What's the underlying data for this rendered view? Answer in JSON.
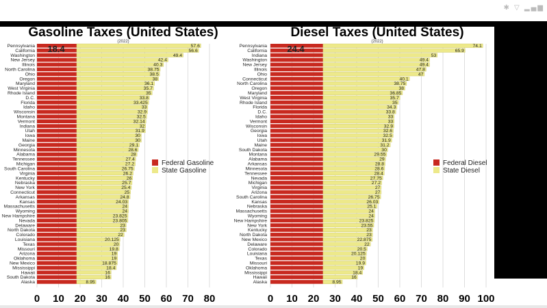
{
  "status_bar": {
    "icons": [
      "bluetooth-icon",
      "wifi-icon",
      "signal-icon"
    ]
  },
  "colors": {
    "federal": "#c8291f",
    "state": "#ede98a",
    "state_stroke": "#c9c46a",
    "grid": "#dddddd"
  },
  "chart_data": [
    {
      "type": "bar",
      "stacked": true,
      "orientation": "horizontal",
      "title": "Gasoline Taxes (United States)",
      "subtitle": "(2022)",
      "xlim": [
        0,
        80
      ],
      "xticks": [
        0,
        10,
        20,
        30,
        40,
        50,
        60,
        70,
        80
      ],
      "grid": true,
      "legend_position": "right",
      "federal_label": "18.4",
      "categories": [
        "Pennsylvania",
        "California",
        "Washington",
        "New Jersey",
        "Illinois",
        "North Carolina",
        "Ohio",
        "Oregon",
        "Maryland",
        "West Virginia",
        "Rhode Island",
        "D.C.",
        "Florida",
        "Idaho",
        "Wisconsin",
        "Montana",
        "Vermont",
        "Indiana",
        "Utah",
        "Iowa",
        "Maine",
        "Georgia",
        "Minnesota",
        "Alabama",
        "Tennessee",
        "Michigan",
        "South Carolina",
        "Virginia",
        "Kentucky",
        "Nebraska",
        "New York",
        "Connecticut",
        "Arkansas",
        "Kansas",
        "Massachusetts",
        "Wyoming",
        "New Hampshire",
        "Nevada",
        "Delaware",
        "North Dakota",
        "Colorado",
        "Louisiana",
        "Texas",
        "Missouri",
        "Arizona",
        "Oklahoma",
        "New Mexico",
        "Mississippi",
        "Hawaii",
        "South Dakota",
        "Alaska"
      ],
      "series": [
        {
          "name": "Federal Gasoline",
          "values": [
            18.4,
            18.4,
            18.4,
            18.4,
            18.4,
            18.4,
            18.4,
            18.4,
            18.4,
            18.4,
            18.4,
            18.4,
            18.4,
            18.4,
            18.4,
            18.4,
            18.4,
            18.4,
            18.4,
            18.4,
            18.4,
            18.4,
            18.4,
            18.4,
            18.4,
            18.4,
            18.4,
            18.4,
            18.4,
            18.4,
            18.4,
            18.4,
            18.4,
            18.4,
            18.4,
            18.4,
            18.4,
            18.4,
            18.4,
            18.4,
            18.4,
            18.4,
            18.4,
            18.4,
            18.4,
            18.4,
            18.4,
            18.4,
            18.4,
            18.4,
            18.4
          ]
        },
        {
          "name": "State Gasoline",
          "values": [
            57.6,
            56.6,
            49.4,
            42.4,
            40.3,
            38.75,
            38.5,
            38,
            36.1,
            35.7,
            35,
            33.8,
            33.425,
            33,
            32.9,
            32.5,
            32.14,
            32,
            31.9,
            30,
            30,
            29.1,
            28.6,
            28,
            27.4,
            27.2,
            26.75,
            26.2,
            26,
            25.7,
            25.4,
            25,
            24.8,
            24.03,
            24,
            24,
            23.825,
            23.805,
            23,
            23,
            22,
            20.125,
            20,
            19.8,
            19,
            19,
            18.875,
            18.4,
            16,
            16,
            8.95
          ]
        }
      ]
    },
    {
      "type": "bar",
      "stacked": true,
      "orientation": "horizontal",
      "title": "Diesel Taxes (United States)",
      "subtitle": "(2022)",
      "xlim": [
        0,
        100
      ],
      "xticks": [
        0,
        10,
        20,
        30,
        40,
        50,
        60,
        70,
        80,
        90,
        100
      ],
      "grid": true,
      "legend_position": "right",
      "federal_label": "24.4",
      "categories": [
        "Pennsylvania",
        "California",
        "Indiana",
        "Washington",
        "New Jersey",
        "Illinois",
        "Ohio",
        "Connecticut",
        "North Carolina",
        "Oregon",
        "Maryland",
        "West Virginia",
        "Rhode Island",
        "Florida",
        "D.C.",
        "Idaho",
        "Vermont",
        "Wisconsin",
        "Georgia",
        "Iowa",
        "Utah",
        "Maine",
        "South Dakota",
        "Montana",
        "Alabama",
        "Arkansas",
        "Minnesota",
        "Tennessee",
        "Nevada",
        "Michigan",
        "Virginia",
        "Arizona",
        "South Carolina",
        "Kansas",
        "Nebraska",
        "Massachusetts",
        "Wyoming",
        "New Hampshire",
        "New York",
        "Kentucky",
        "North Dakota",
        "New Mexico",
        "Delaware",
        "Colorado",
        "Louisiana",
        "Texas",
        "Missouri",
        "Oklahoma",
        "Mississippi",
        "Hawaii",
        "Alaska"
      ],
      "series": [
        {
          "name": "Federal Diesel",
          "values": [
            24.4,
            24.4,
            24.4,
            24.4,
            24.4,
            24.4,
            24.4,
            24.4,
            24.4,
            24.4,
            24.4,
            24.4,
            24.4,
            24.4,
            24.4,
            24.4,
            24.4,
            24.4,
            24.4,
            24.4,
            24.4,
            24.4,
            24.4,
            24.4,
            24.4,
            24.4,
            24.4,
            24.4,
            24.4,
            24.4,
            24.4,
            24.4,
            24.4,
            24.4,
            24.4,
            24.4,
            24.4,
            24.4,
            24.4,
            24.4,
            24.4,
            24.4,
            24.4,
            24.4,
            24.4,
            24.4,
            24.4,
            24.4,
            24.4,
            24.4,
            24.4
          ]
        },
        {
          "name": "State Diesel",
          "values": [
            74.1,
            65.9,
            53,
            49.4,
            49.4,
            47.8,
            47,
            40.1,
            38.75,
            38,
            36.85,
            35.7,
            35,
            34.3,
            33.8,
            33,
            33,
            32.9,
            32.6,
            32.5,
            31.9,
            31.2,
            30,
            29.55,
            29,
            28.8,
            28.6,
            28.4,
            27.75,
            27.2,
            27,
            27,
            26.75,
            26.03,
            25.1,
            24,
            24,
            23.825,
            23.55,
            23,
            23,
            22.875,
            22,
            20.5,
            20.125,
            20,
            19.9,
            19,
            18.4,
            16,
            8.95
          ]
        }
      ]
    }
  ]
}
